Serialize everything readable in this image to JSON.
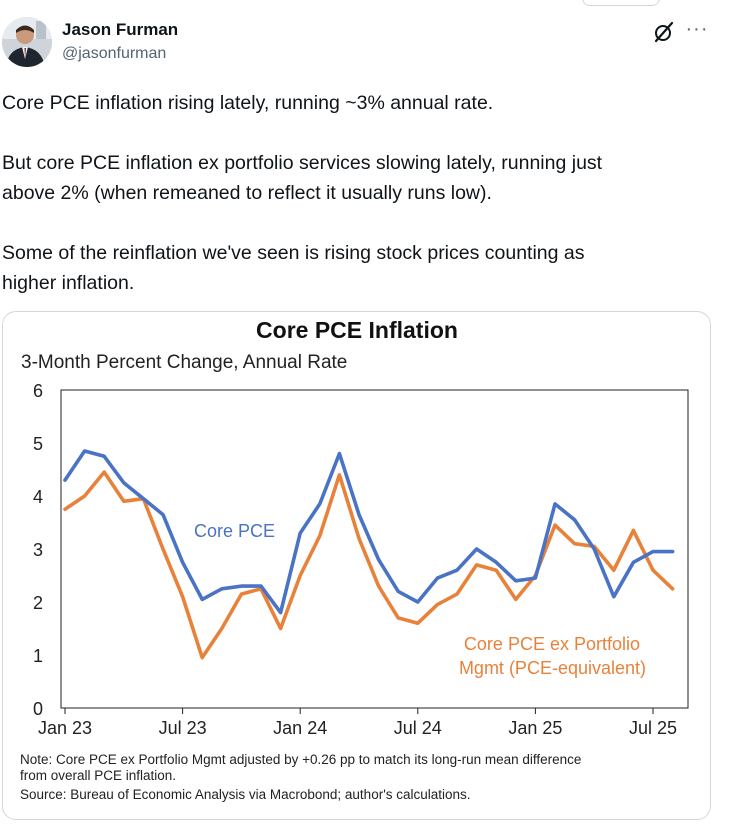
{
  "author": {
    "name": "Jason Furman",
    "handle": "@jasonfurman"
  },
  "icons": [
    "grok-icon",
    "more-icon"
  ],
  "more_label": "···",
  "tweet": {
    "paragraphs": [
      "Core PCE inflation rising lately, running ~3% annual rate.",
      "But core PCE inflation ex portfolio services slowing lately, running just\nabove 2% (when remeaned to reflect it usually runs low).",
      "Some of the reinflation we've seen is rising stock prices counting as\nhigher inflation."
    ]
  },
  "chart_data": {
    "type": "line",
    "title": "Core PCE Inflation",
    "subtitle": "3-Month Percent Change, Annual Rate",
    "ylim": [
      0,
      6
    ],
    "yticks": [
      "0",
      "1",
      "2",
      "3",
      "4",
      "5",
      "6"
    ],
    "xticks": [
      {
        "label": "Jan 23",
        "index": 0
      },
      {
        "label": "Jul 23",
        "index": 6
      },
      {
        "label": "Jan 24",
        "index": 12
      },
      {
        "label": "Jul 24",
        "index": 18
      },
      {
        "label": "Jan 25",
        "index": 24
      },
      {
        "label": "Jul 25",
        "index": 30
      }
    ],
    "x": [
      "Jan 23",
      "Feb 23",
      "Mar 23",
      "Apr 23",
      "May 23",
      "Jun 23",
      "Jul 23",
      "Aug 23",
      "Sep 23",
      "Oct 23",
      "Nov 23",
      "Dec 23",
      "Jan 24",
      "Feb 24",
      "Mar 24",
      "Apr 24",
      "May 24",
      "Jun 24",
      "Jul 24",
      "Aug 24",
      "Sep 24",
      "Oct 24",
      "Nov 24",
      "Dec 24",
      "Jan 25",
      "Feb 25",
      "Mar 25",
      "Apr 25",
      "May 25",
      "Jun 25",
      "Jul 25",
      "Aug 25"
    ],
    "series": [
      {
        "name": "Core PCE",
        "color": "#4a73c5",
        "values": [
          4.3,
          4.85,
          4.75,
          4.25,
          3.95,
          3.65,
          2.75,
          2.05,
          2.25,
          2.3,
          2.3,
          1.8,
          3.3,
          3.85,
          4.8,
          3.65,
          2.8,
          2.2,
          2.0,
          2.45,
          2.6,
          3.0,
          2.75,
          2.4,
          2.45,
          3.85,
          3.55,
          3.0,
          2.1,
          2.75,
          2.95,
          2.95
        ]
      },
      {
        "name": "Core PCE ex Portfolio Mgmt (PCE-equivalent)",
        "color": "#e8823a",
        "values": [
          3.75,
          4.0,
          4.45,
          3.9,
          3.95,
          3.0,
          2.1,
          0.95,
          1.5,
          2.15,
          2.25,
          1.5,
          2.5,
          3.25,
          4.4,
          3.2,
          2.3,
          1.7,
          1.6,
          1.95,
          2.15,
          2.7,
          2.6,
          2.05,
          2.5,
          3.45,
          3.1,
          3.05,
          2.6,
          3.35,
          2.6,
          2.25
        ]
      }
    ],
    "annotations": [
      "Core PCE",
      "Core PCE ex Portfolio",
      "Mgmt (PCE-equivalent)"
    ],
    "notes": [
      "Note: Core PCE ex Portfolio Mgmt adjusted by +0.26 pp to match its long-run mean difference",
      "from overall PCE inflation.",
      "Source: Bureau of Economic Analysis via Macrobond; author's calculations."
    ]
  }
}
